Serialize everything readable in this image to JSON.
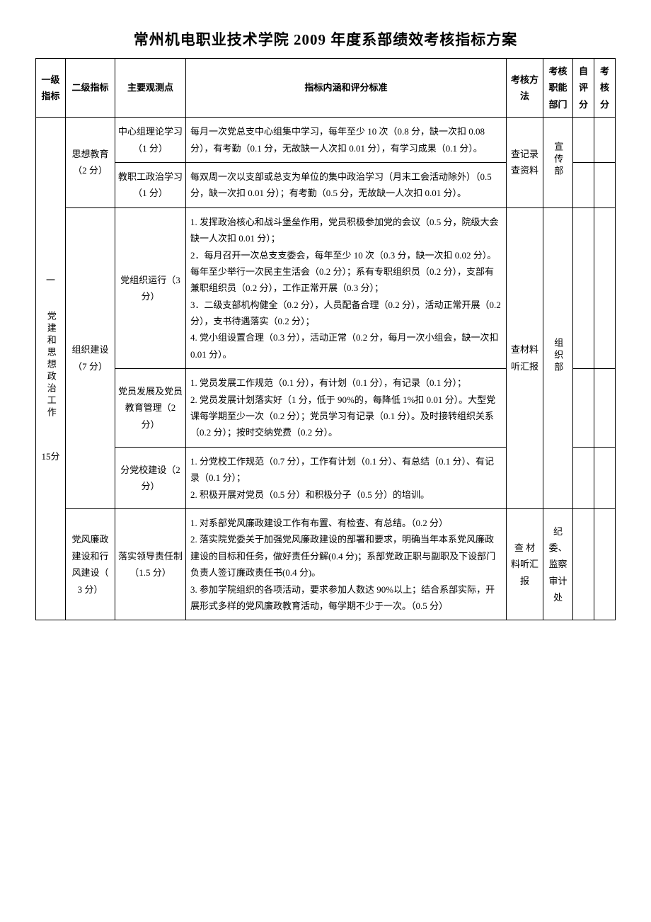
{
  "title": "常州机电职业技术学院 2009 年度系部绩效考核指标方案",
  "headers": {
    "level1": "一级指标",
    "level2": "二级指标",
    "observation": "主要观测点",
    "content": "指标内涵和评分标准",
    "method": "考核方法",
    "department": "考核职能部门",
    "selfScore": "自评分",
    "assessScore": "考核分"
  },
  "category1": {
    "title_line1": "一",
    "title_rest": "党建和思想政治工作",
    "score": "15分"
  },
  "rows": [
    {
      "level2": "思想教育（2 分）",
      "method": "查记录查资料",
      "dept": "宣传部",
      "obs": [
        {
          "name": "中心组理论学习（1 分）",
          "content": "每月一次党总支中心组集中学习，每年至少 10 次（0.8 分，缺一次扣 0.08 分），有考勤（0.1 分，无故缺一人次扣 0.01 分），有学习成果（0.1 分）。"
        },
        {
          "name": "教职工政治学习（1 分）",
          "content": "每双周一次以支部或总支为单位的集中政治学习（月末工会活动除外）（0.5 分，缺一次扣 0.01 分）；有考勤（0.5 分，无故缺一人次扣 0.01 分）。"
        }
      ]
    },
    {
      "level2": "组织建设（7 分）",
      "method": "查材料听汇报",
      "dept": "组织部",
      "obs": [
        {
          "name": "党组织运行（3 分）",
          "content": "1. 发挥政治核心和战斗堡垒作用，党员积极参加党的会议（0.5 分，院级大会缺一人次扣 0.01 分）；\n2．每月召开一次总支支委会，每年至少 10 次（0.3 分，缺一次扣 0.02 分）。每年至少举行一次民主生活会（0.2 分）；系有专职组织员（0.2 分），支部有兼职组织员（0.2 分），工作正常开展（0.3 分）；\n3．二级支部机构健全（0.2 分），人员配备合理（0.2 分），活动正常开展（0.2 分），支书待遇落实（0.2 分）；\n4. 党小组设置合理（0.3 分），活动正常（0.2 分，每月一次小组会，缺一次扣 0.01 分）。"
        },
        {
          "name": "党员发展及党员教育管理（2 分）",
          "content": "1. 党员发展工作规范（0.1 分），有计划（0.1 分），有记录（0.1 分）；\n2. 党员发展计划落实好（1 分，低于 90%的，每降低 1%扣 0.01 分）。大型党课每学期至少一次（0.2 分）；党员学习有记录（0.1 分）。及时接转组织关系（0.2 分）；按时交纳党费（0.2 分）。"
        },
        {
          "name": "分党校建设（2 分）",
          "content": "1. 分党校工作规范（0.7 分），工作有计划（0.1 分）、有总结（0.1 分）、有记录（0.1 分）；\n2. 积极开展对党员（0.5 分）和积极分子（0.5 分）的培训。"
        }
      ]
    },
    {
      "level2": "党风廉政建设和行风建设（ 3 分）",
      "method": "查 材 料听汇报",
      "dept": "纪委、监察审计处",
      "obs": [
        {
          "name": "落实领导责任制（1.5 分）",
          "content": "1. 对系部党风廉政建设工作有布置、有检查、有总结。（0.2 分）\n2. 落实院党委关于加强党风廉政建设的部署和要求，明确当年本系党风廉政建设的目标和任务，做好责任分解(0.4 分)；系部党政正职与副职及下设部门负责人签订廉政责任书(0.4 分)。\n3. 参加学院组织的各项活动，要求参加人数达 90%以上；结合系部实际，开展形式多样的党风廉政教育活动，每学期不少于一次。（0.5 分）"
        }
      ]
    }
  ]
}
